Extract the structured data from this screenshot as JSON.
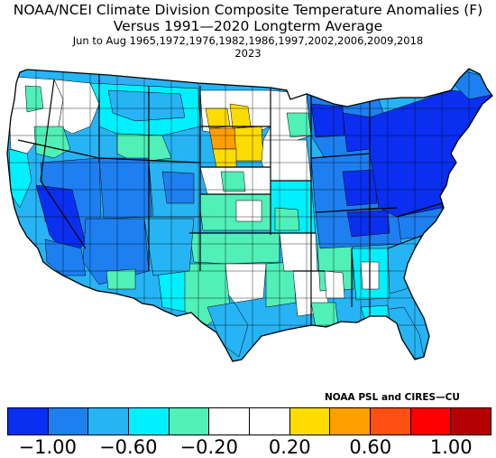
{
  "title": {
    "line1": "NOAA/NCEI Climate Division Composite Temperature Anomalies (F)",
    "line2": "Versus 1991—2020 Longterm Average",
    "line3": "Jun to Aug   1965,1972,1976,1982,1986,1997,2002,2006,2009,2018",
    "line4": "2023"
  },
  "credit": "NOAA PSL and CIRES—CU",
  "colorbar": {
    "colors": [
      "#0a2ff0",
      "#1e7ff0",
      "#27b4f5",
      "#00f0ff",
      "#50f0b8",
      "#ffffff",
      "#ffffff",
      "#ffdc00",
      "#ffa000",
      "#ff5014",
      "#ff0000",
      "#b40000"
    ],
    "labels": [
      "−1.00",
      "−0.60",
      "−0.20",
      "0.20",
      "0.60",
      "1.00"
    ]
  },
  "map_legend": {
    "region_colors": {
      "cold_strong": "#0a2ff0",
      "cold": "#1e7ff0",
      "cool": "#27b4f5",
      "cyan": "#00f0ff",
      "mint": "#50f0b8",
      "neutral": "#ffffff",
      "warm": "#ffdc00",
      "hot": "#ffa000"
    }
  }
}
